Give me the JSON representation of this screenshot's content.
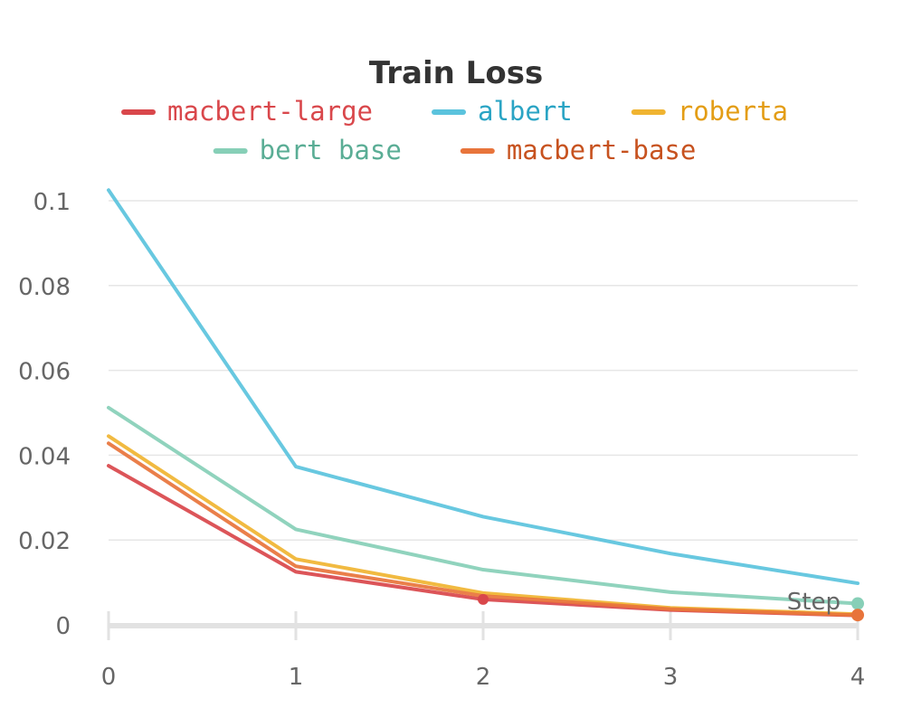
{
  "chart_data": {
    "type": "line",
    "title": "Train Loss",
    "xlabel": "Step",
    "ylabel": "",
    "x": [
      0,
      1,
      2,
      3,
      4
    ],
    "xlim": [
      0,
      4
    ],
    "ylim": [
      0,
      0.1
    ],
    "x_ticks": [
      "0",
      "1",
      "2",
      "3",
      "4"
    ],
    "y_ticks": [
      {
        "value": 0,
        "label": "0"
      },
      {
        "value": 0.02,
        "label": "0.02"
      },
      {
        "value": 0.04,
        "label": "0.04"
      },
      {
        "value": 0.06,
        "label": "0.06"
      },
      {
        "value": 0.08,
        "label": "0.08"
      },
      {
        "value": 0.1,
        "label": "0.1"
      }
    ],
    "grid": true,
    "legend_position": "top",
    "series": [
      {
        "name": "macbert-large",
        "color": "#d9474b",
        "values": [
          0.0375,
          0.0125,
          0.006,
          0.0035,
          0.0022
        ]
      },
      {
        "name": "albert",
        "color": "#5bc3dd",
        "values": [
          0.1025,
          0.0373,
          0.0255,
          0.0168,
          0.0098
        ]
      },
      {
        "name": "roberta",
        "color": "#f0b431",
        "values": [
          0.0445,
          0.0155,
          0.0075,
          0.004,
          0.0025
        ]
      },
      {
        "name": "bert base",
        "color": "#87cfb7",
        "values": [
          0.0512,
          0.0225,
          0.013,
          0.0077,
          0.005
        ]
      },
      {
        "name": "macbert-base",
        "color": "#e8743b",
        "values": [
          0.0428,
          0.0138,
          0.0068,
          0.0037,
          0.0023
        ]
      }
    ]
  },
  "legend_text_colors": [
    "#d9474b",
    "#2aa4c4",
    "#e39d15",
    "#5aad95",
    "#c7521f"
  ]
}
